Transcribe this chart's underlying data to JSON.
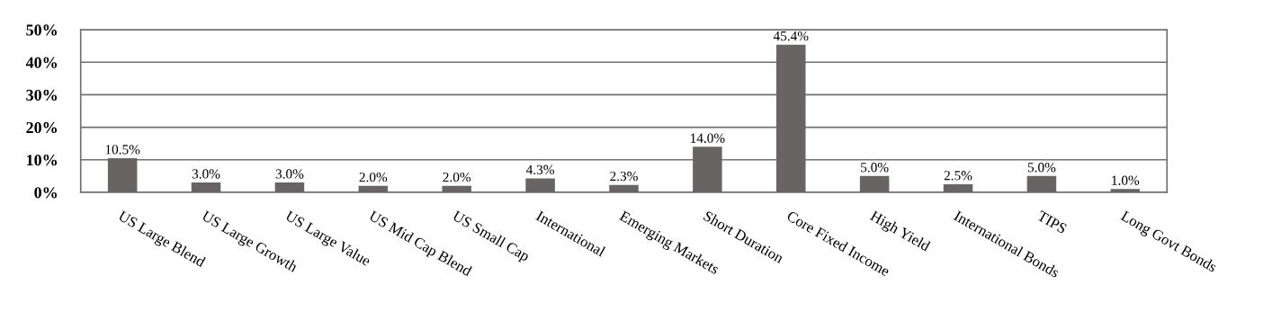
{
  "chart_data": {
    "type": "bar",
    "categories": [
      "US Large Blend",
      "US Large Growth",
      "US Large Value",
      "US Mid Cap Blend",
      "US Small Cap",
      "International",
      "Emerging Markets",
      "Short Duration",
      "Core Fixed Income",
      "High Yield",
      "International Bonds",
      "TIPS",
      "Long Govt Bonds"
    ],
    "values": [
      10.5,
      3.0,
      3.0,
      2.0,
      2.0,
      4.3,
      2.3,
      14.0,
      45.4,
      5.0,
      2.5,
      5.0,
      1.0
    ],
    "value_labels": [
      "10.5%",
      "3.0%",
      "3.0%",
      "2.0%",
      "2.0%",
      "4.3%",
      "2.3%",
      "14.0%",
      "45.4%",
      "5.0%",
      "2.5%",
      "5.0%",
      "1.0%"
    ],
    "color": "#686463",
    "ylim": [
      0,
      50
    ],
    "yticks": [
      {
        "value": 0,
        "label": "0%"
      },
      {
        "value": 10,
        "label": "10%"
      },
      {
        "value": 20,
        "label": "20%"
      },
      {
        "value": 30,
        "label": "30%"
      },
      {
        "value": 40,
        "label": "40%"
      },
      {
        "value": 50,
        "label": "50%"
      }
    ],
    "grid": "y",
    "legend": false
  }
}
